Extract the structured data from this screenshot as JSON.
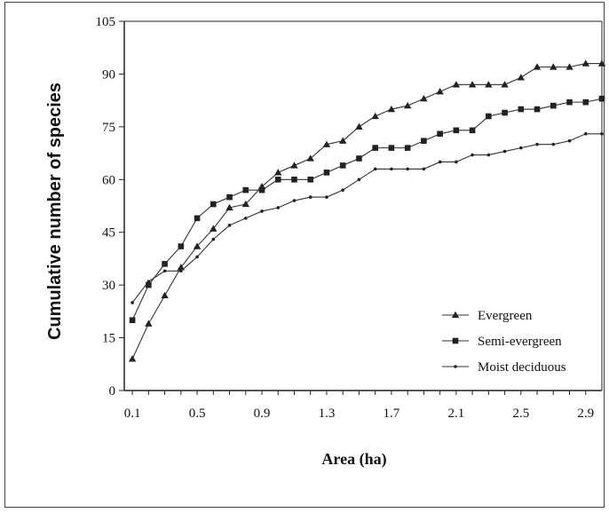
{
  "chart_data": {
    "type": "line",
    "xlabel": "Area  (ha)",
    "ylabel": "Cumulative number of species",
    "xlim": [
      0.05,
      3.0
    ],
    "ylim": [
      0,
      105
    ],
    "x_ticks": [
      "0.1",
      "0.5",
      "0.9",
      "1.3",
      "1.7",
      "2.1",
      "2.5",
      "2.9"
    ],
    "y_ticks": [
      "0",
      "15",
      "30",
      "45",
      "60",
      "75",
      "90",
      "105"
    ],
    "legend_position": "bottom-right",
    "x": [
      0.1,
      0.2,
      0.3,
      0.4,
      0.5,
      0.6,
      0.7,
      0.8,
      0.9,
      1.0,
      1.1,
      1.2,
      1.3,
      1.4,
      1.5,
      1.6,
      1.7,
      1.8,
      1.9,
      2.0,
      2.1,
      2.2,
      2.3,
      2.4,
      2.5,
      2.6,
      2.7,
      2.8,
      2.9,
      3.0
    ],
    "series": [
      {
        "name": "Evergreen",
        "marker": "triangle",
        "values": [
          9,
          19,
          27,
          35,
          41,
          46,
          52,
          53,
          58,
          62,
          64,
          66,
          70,
          71,
          75,
          78,
          80,
          81,
          83,
          85,
          87,
          87,
          87,
          87,
          89,
          92,
          92,
          92,
          93,
          93
        ]
      },
      {
        "name": "Semi-evergreen",
        "marker": "square",
        "values": [
          20,
          30,
          36,
          41,
          49,
          53,
          55,
          57,
          57,
          60,
          60,
          60,
          62,
          64,
          66,
          69,
          69,
          69,
          71,
          73,
          74,
          74,
          78,
          79,
          80,
          80,
          81,
          82,
          82,
          83
        ]
      },
      {
        "name": "Moist deciduous",
        "marker": "dot",
        "values": [
          25,
          31,
          34,
          34,
          38,
          43,
          47,
          49,
          51,
          52,
          54,
          55,
          55,
          57,
          60,
          63,
          63,
          63,
          63,
          65,
          65,
          67,
          67,
          68,
          69,
          70,
          70,
          71,
          73,
          73
        ]
      }
    ]
  },
  "colors": {
    "line": "#333333",
    "marker": "#222222",
    "axis": "#222222"
  }
}
